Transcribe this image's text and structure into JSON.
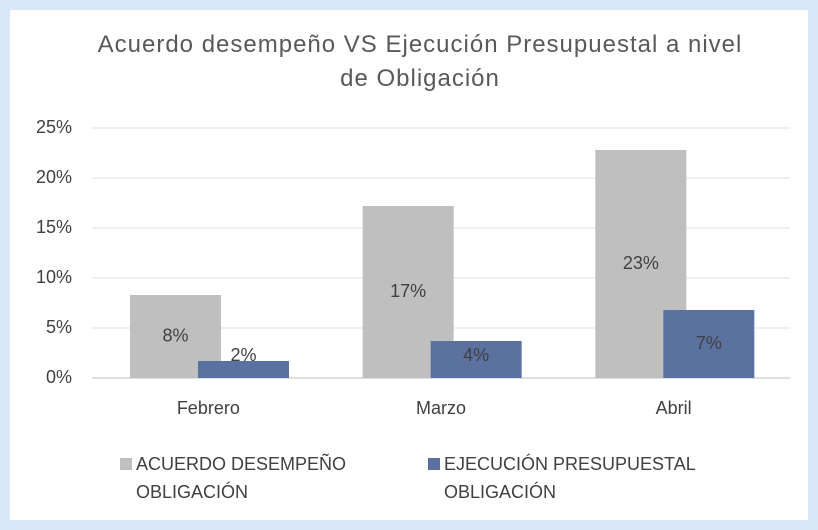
{
  "chart_data": {
    "type": "bar",
    "title": "Acuerdo desempeño VS Ejecución Presupuestal a nivel de Obligación",
    "categories": [
      "Febrero",
      "Marzo",
      "Abril"
    ],
    "series": [
      {
        "name": "ACUERDO DESEMPEÑO OBLIGACIÓN",
        "color": "#bfbfbf",
        "values": [
          8.3,
          17.2,
          22.8
        ],
        "value_labels": [
          "8%",
          "17%",
          "23%"
        ]
      },
      {
        "name": "EJECUCIÓN PRESUPUESTAL OBLIGACIÓN",
        "color": "#5b72a0",
        "values": [
          1.7,
          3.7,
          6.8
        ],
        "value_labels": [
          "2%",
          "4%",
          "7%"
        ]
      }
    ],
    "ylim": [
      0,
      25
    ],
    "yticks": [
      {
        "value": 0,
        "label": "0%"
      },
      {
        "value": 5,
        "label": "5%"
      },
      {
        "value": 10,
        "label": "10%"
      },
      {
        "value": 15,
        "label": "15%"
      },
      {
        "value": 20,
        "label": "20%"
      },
      {
        "value": 25,
        "label": "25%"
      }
    ],
    "grid": true,
    "legend": "bottom"
  }
}
